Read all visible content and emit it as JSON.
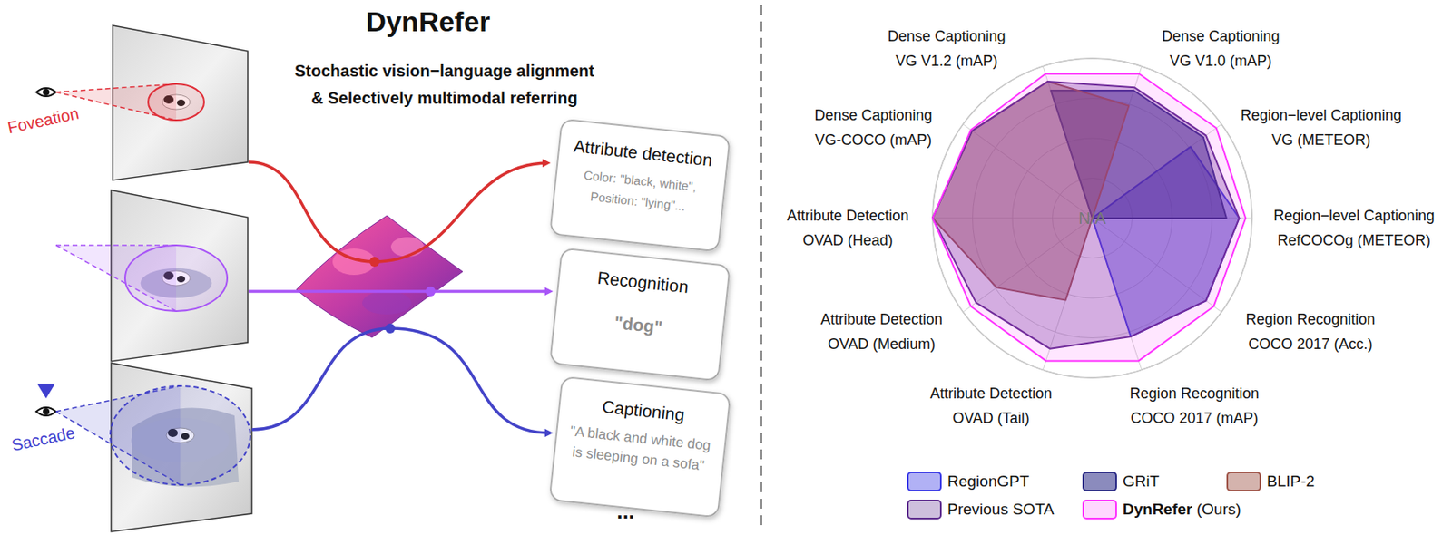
{
  "diagram": {
    "title": "DynRefer",
    "subtitle": [
      "Stochastic vision−language alignment",
      "& Selectively multimodal referring"
    ],
    "stages": {
      "top": "Foveation",
      "bottom": "Saccade"
    },
    "outputs": [
      {
        "title": "Attribute detection",
        "lines": [
          "Color: \"black, white\",",
          "Position: \"lying\"..."
        ]
      },
      {
        "title": "Recognition",
        "lines": [
          "\"dog\""
        ]
      },
      {
        "title": "Captioning",
        "lines": [
          "\"A black and white dog",
          "is sleeping on a sofa\""
        ]
      }
    ],
    "more": "..."
  },
  "chart_data": {
    "type": "radar",
    "categories": [
      [
        "Dense Captioning",
        "VG V1.0 (mAP)"
      ],
      [
        "Region−level Captioning",
        "VG (METEOR)"
      ],
      [
        "Region−level Captioning",
        "RefCOCOg (METEOR)"
      ],
      [
        "Region Recognition",
        "COCO 2017 (Acc.)"
      ],
      [
        "Region Recognition",
        "COCO 2017 (mAP)"
      ],
      [
        "Attribute Detection",
        "OVAD (Tail)"
      ],
      [
        "Attribute Detection",
        "OVAD (Medium)"
      ],
      [
        "Attribute Detection",
        "OVAD (Head)"
      ],
      [
        "Dense Captioning",
        "VG-COCO (mAP)"
      ],
      [
        "Dense Captioning",
        "VG V1.2 (mAP)"
      ]
    ],
    "annotation": "N/A",
    "ylim": [
      0,
      100
    ],
    "yticks": [
      25,
      50,
      75,
      100
    ],
    "grid": true,
    "tick_labels": false,
    "legend": "bottom",
    "series": [
      {
        "name": "RegionGPT",
        "color": "#3b3be6",
        "values": [
          0,
          76,
          92,
          88,
          78,
          0,
          0,
          0,
          0,
          0
        ]
      },
      {
        "name": "GRiT",
        "color": "#2c2c86",
        "values": [
          84,
          86,
          84,
          0,
          0,
          0,
          0,
          0,
          0,
          84
        ]
      },
      {
        "name": "BLIP-2",
        "color": "#a0564a",
        "values": [
          74,
          0,
          0,
          0,
          0,
          54,
          74,
          100,
          93,
          90
        ]
      },
      {
        "name": "Previous SOTA",
        "color": "#5e2c8e",
        "values": [
          86,
          88,
          92,
          88,
          78,
          86,
          90,
          100,
          93,
          90
        ]
      },
      {
        "name": "DynRefer (Ours)",
        "color": "#ff33ff",
        "values": [
          95,
          96,
          96,
          94,
          94,
          94,
          94,
          100,
          94,
          95
        ]
      }
    ]
  }
}
